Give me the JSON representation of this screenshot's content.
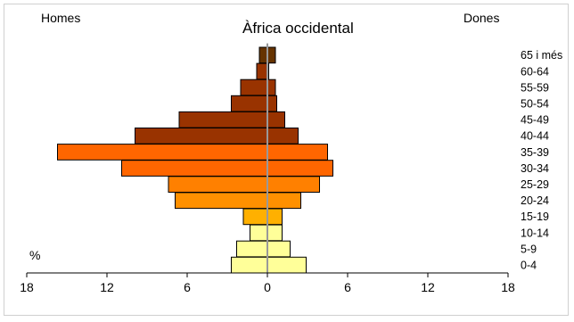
{
  "chart_data": {
    "type": "bar",
    "title": "Àfrica occidental",
    "left_label": "Homes",
    "right_label": "Dones",
    "unit_label": "%",
    "categories": [
      "0-4",
      "5-9",
      "10-14",
      "15-19",
      "20-24",
      "25-29",
      "30-34",
      "35-39",
      "40-44",
      "45-49",
      "50-54",
      "55-59",
      "60-64",
      "65 i més"
    ],
    "series": [
      {
        "name": "Homes",
        "values": [
          2.7,
          2.3,
          1.3,
          1.8,
          6.9,
          7.4,
          10.9,
          15.7,
          9.9,
          6.6,
          2.7,
          2.0,
          0.8,
          0.6
        ]
      },
      {
        "name": "Dones",
        "values": [
          2.9,
          1.7,
          1.1,
          1.1,
          2.5,
          3.9,
          4.9,
          4.5,
          2.3,
          1.3,
          0.7,
          0.6,
          0.1,
          0.6
        ]
      }
    ],
    "xlim": [
      -18,
      18
    ],
    "xticks": [
      -18,
      -12,
      -6,
      0,
      6,
      12,
      18
    ],
    "xtick_labels": [
      "18",
      "12",
      "6",
      "0",
      "6",
      "12",
      "18"
    ],
    "bar_colors": [
      "#FFFF99",
      "#FFFF99",
      "#FFFF99",
      "#FFB000",
      "#FF9000",
      "#FF8000",
      "#FF6600",
      "#FF6600",
      "#993300",
      "#993300",
      "#993300",
      "#993300",
      "#993300",
      "#663300"
    ],
    "center_line_color": "#999999",
    "grid": false,
    "legend": "none"
  }
}
